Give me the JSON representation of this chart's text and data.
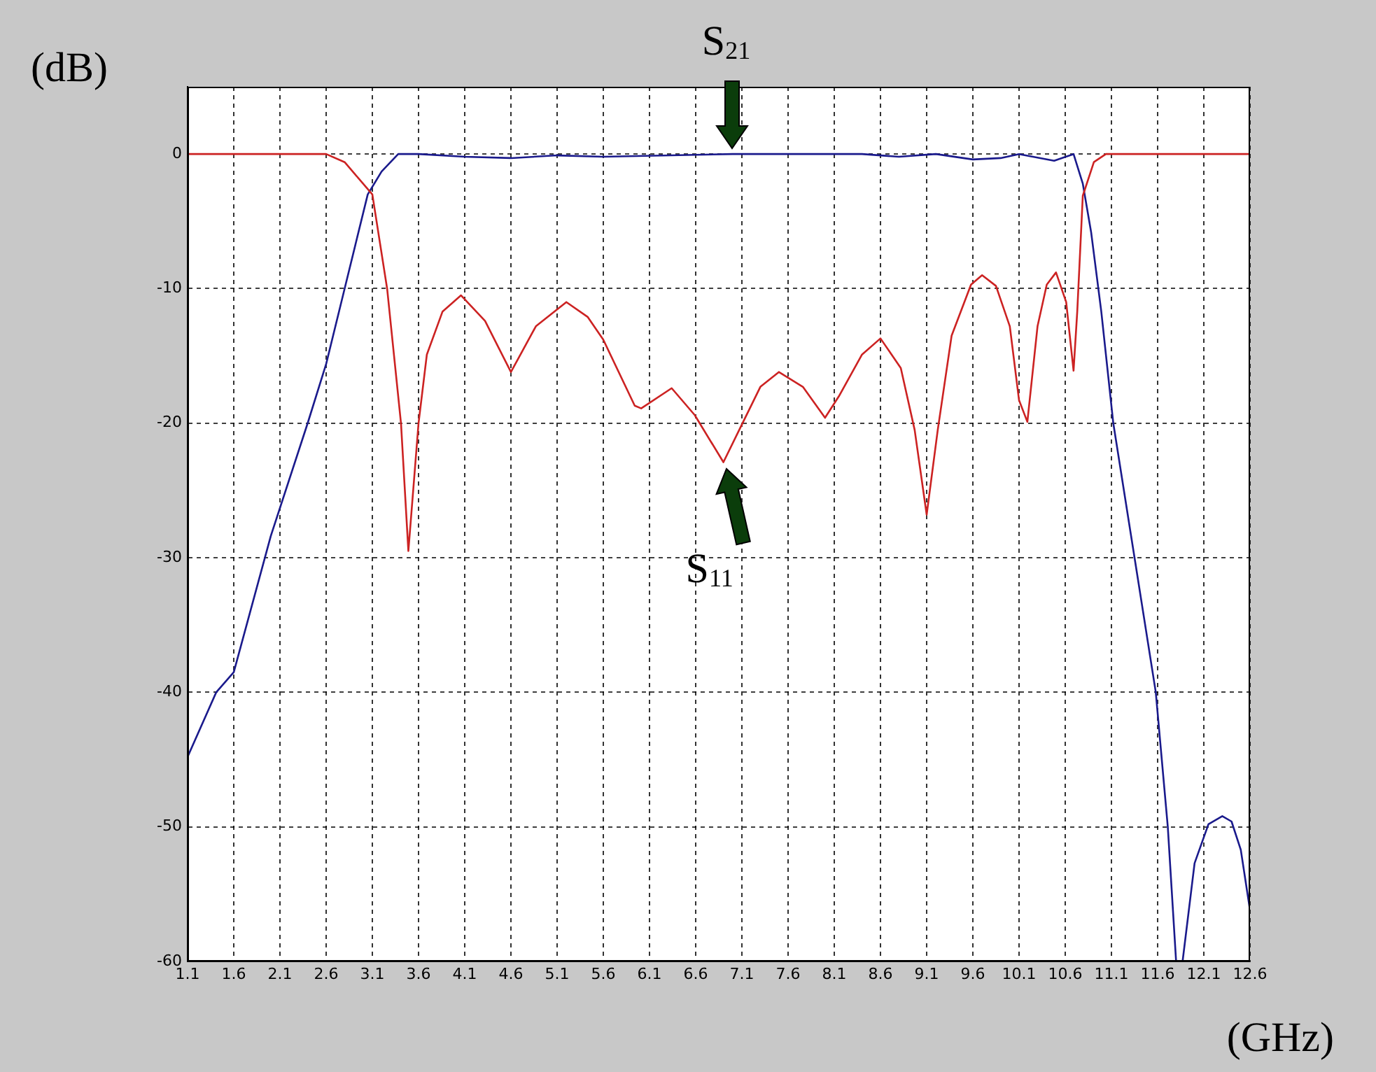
{
  "chart_data": {
    "type": "line",
    "xlabel": "(GHz)",
    "ylabel": "(dB)",
    "xlim": [
      1.1,
      12.6
    ],
    "xticks": [
      1.1,
      1.6,
      2.1,
      2.6,
      3.1,
      3.6,
      4.1,
      4.6,
      5.1,
      5.6,
      6.1,
      6.6,
      7.1,
      7.6,
      8.1,
      8.6,
      9.1,
      9.6,
      10.1,
      10.6,
      11.1,
      11.6,
      12.1,
      12.6
    ],
    "ylim": [
      -60,
      5
    ],
    "yticks": [
      -60,
      -50,
      -40,
      -30,
      -20,
      -10,
      0
    ],
    "grid": true,
    "legend": false,
    "marker": "none",
    "line_style": "solid",
    "series": [
      {
        "color": "#cc2222",
        "x": [
          1.1,
          2.6,
          2.8,
          3.1,
          3.26,
          3.41,
          3.49,
          3.6,
          3.69,
          3.86,
          4.06,
          4.32,
          4.6,
          4.87,
          5.2,
          5.43,
          5.6,
          5.94,
          6.01,
          6.34,
          6.59,
          6.9,
          7.1,
          7.3,
          7.5,
          7.76,
          8.0,
          8.15,
          8.4,
          8.6,
          8.82,
          8.97,
          9.1,
          9.22,
          9.37,
          9.58,
          9.7,
          9.85,
          10.0,
          10.1,
          10.19,
          10.3,
          10.4,
          10.5,
          10.61,
          10.69,
          10.73,
          10.79,
          10.91,
          11.04,
          12.6
        ],
        "values": [
          0,
          0,
          -0.6,
          -3,
          -10,
          -20,
          -29.5,
          -20,
          -14.9,
          -11.7,
          -10.5,
          -12.4,
          -16.2,
          -12.8,
          -11,
          -12.1,
          -13.8,
          -18.7,
          -18.9,
          -17.4,
          -19.4,
          -22.9,
          -20.1,
          -17.3,
          -16.2,
          -17.3,
          -19.6,
          -18,
          -14.9,
          -13.7,
          -15.9,
          -20.5,
          -26.8,
          -20.5,
          -13.5,
          -9.7,
          -9,
          -9.8,
          -12.8,
          -18.3,
          -19.9,
          -12.8,
          -9.7,
          -8.8,
          -11,
          -16.1,
          -11.7,
          -3.1,
          -0.6,
          0,
          0
        ]
      },
      {
        "color": "#1a1a8c",
        "x": [
          1.1,
          1.41,
          1.6,
          2.0,
          2.4,
          2.6,
          2.8,
          3.05,
          3.2,
          3.38,
          3.6,
          4.1,
          4.6,
          5.1,
          5.6,
          7.0,
          8.4,
          8.8,
          9.2,
          9.6,
          9.9,
          10.1,
          10.48,
          10.69,
          10.79,
          10.88,
          10.99,
          11.12,
          11.35,
          11.58,
          11.71,
          11.8,
          11.87,
          12.0,
          12.15,
          12.3,
          12.4,
          12.5,
          12.6
        ],
        "values": [
          -44.8,
          -40,
          -38.5,
          -28.4,
          -20,
          -15.6,
          -10,
          -3,
          -1.3,
          0,
          0,
          -0.2,
          -0.3,
          -0.1,
          -0.2,
          0,
          0,
          -0.2,
          0,
          -0.4,
          -0.3,
          0,
          -0.5,
          0,
          -2.2,
          -5.8,
          -11.7,
          -20,
          -30,
          -40,
          -50,
          -60,
          -60,
          -52.7,
          -49.8,
          -49.2,
          -49.6,
          -51.7,
          -56.2
        ]
      }
    ],
    "annotations": [
      {
        "text": "S$_{21}$",
        "x": 7.0,
        "y": 0
      },
      {
        "text": "S$_{11}$",
        "x": 6.9,
        "y": -22.9
      }
    ]
  }
}
